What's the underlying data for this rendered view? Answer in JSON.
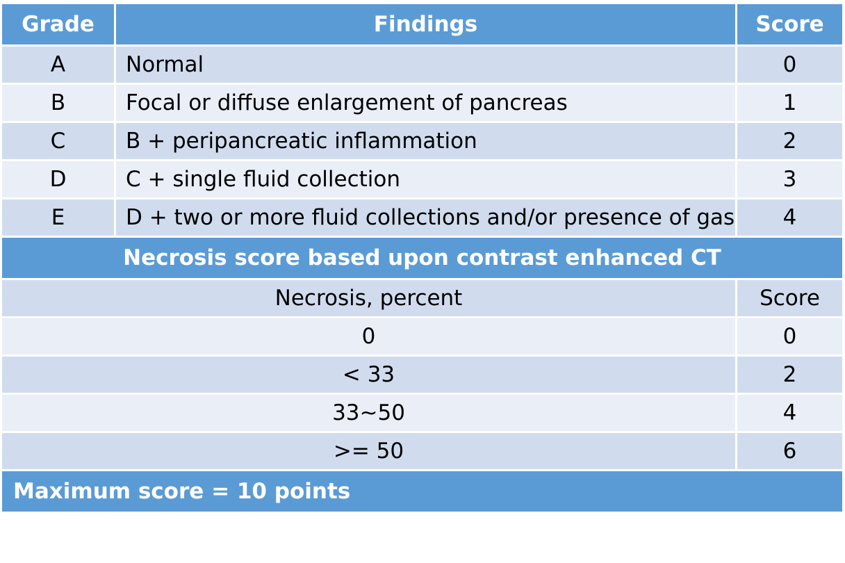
{
  "grade_table": {
    "headers": [
      "Grade",
      "Findings",
      "Score"
    ],
    "rows": [
      {
        "grade": "A",
        "findings": "Normal",
        "score": "0"
      },
      {
        "grade": "B",
        "findings": "Focal or diffuse enlargement of pancreas",
        "score": "1"
      },
      {
        "grade": "C",
        "findings": "B + peripancreatic inflammation",
        "score": "2"
      },
      {
        "grade": "D",
        "findings": "C + single fluid collection",
        "score": "3"
      },
      {
        "grade": "E",
        "findings": "D + two or more fluid collections and/or presence of gas",
        "score": "4"
      }
    ]
  },
  "necrosis_section": {
    "title": "Necrosis score based upon contrast enhanced CT",
    "headers": [
      "Necrosis, percent",
      "Score"
    ],
    "rows": [
      {
        "necrosis": "0",
        "score": "0"
      },
      {
        "necrosis": "< 33",
        "score": "2"
      },
      {
        "necrosis": "33~50",
        "score": "4"
      },
      {
        "necrosis": ">= 50",
        "score": "6"
      }
    ]
  },
  "footer": {
    "text": "Maximum score = 10 points"
  },
  "colors": {
    "header_blue": "#5b9bd5",
    "row_dark": "#d0dcee",
    "row_light": "#e9eef7"
  }
}
